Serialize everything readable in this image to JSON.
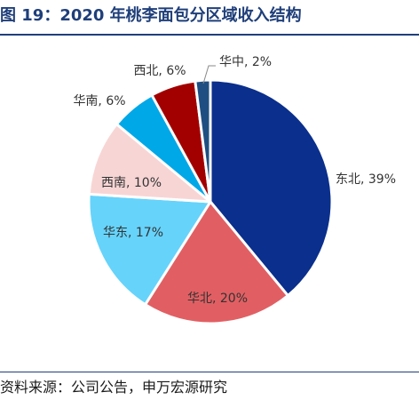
{
  "title": "图 19：2020 年桃李面包分区域收入结构",
  "source": "资料来源：公司公告，申万宏源研究",
  "chart_data": {
    "type": "pie",
    "title": "",
    "start_angle_deg": 0,
    "direction": "clockwise",
    "slices": [
      {
        "label": "东北, 39%",
        "value": 39,
        "color": "#0a2f8c"
      },
      {
        "label": "华北, 20%",
        "value": 20,
        "color": "#e15f63"
      },
      {
        "label": "华东, 17%",
        "value": 17,
        "color": "#66d3fb"
      },
      {
        "label": "西南, 10%",
        "value": 10,
        "color": "#f8d5d5"
      },
      {
        "label": "华南, 6%",
        "value": 6,
        "color": "#00a8e8"
      },
      {
        "label": "西北, 6%",
        "value": 6,
        "color": "#a20000"
      },
      {
        "label": "华中, 2%",
        "value": 2,
        "color": "#1f4f82"
      }
    ]
  }
}
